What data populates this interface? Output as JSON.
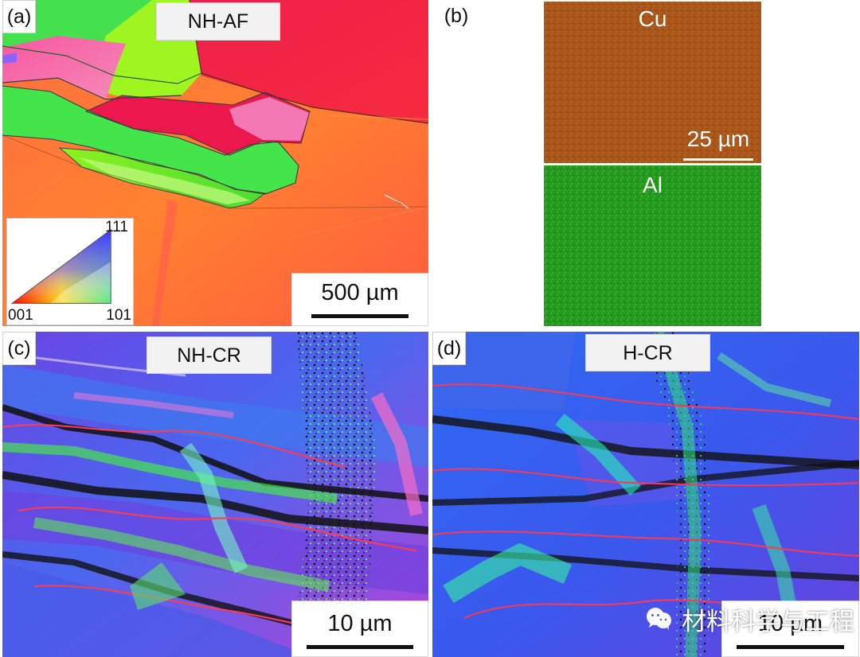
{
  "panels": {
    "a": {
      "letter": "(a)",
      "title": "NH-AF",
      "scale_bar": "500 µm",
      "legend": {
        "top": "111",
        "left": "001",
        "right": "101"
      }
    },
    "b": {
      "letter": "(b)",
      "element_top": "Cu",
      "element_bottom": "Al",
      "scale_bar": "25 µm"
    },
    "c": {
      "letter": "(c)",
      "title": "NH-CR",
      "scale_bar": "10 µm"
    },
    "d": {
      "letter": "(d)",
      "title": "H-CR",
      "scale_bar": "10 µm"
    }
  },
  "watermark": "材料科学与工程",
  "colors": {
    "ebsd_red": "#ef2745",
    "ebsd_orange": "#ff7a3a",
    "ebsd_green": "#4ee22f",
    "ebsd_pink": "#f56aa8",
    "cu_map": "#a9571c",
    "al_map": "#249b1e",
    "blue_grain": "#3d6ee8",
    "violet_grain": "#7b43da"
  }
}
